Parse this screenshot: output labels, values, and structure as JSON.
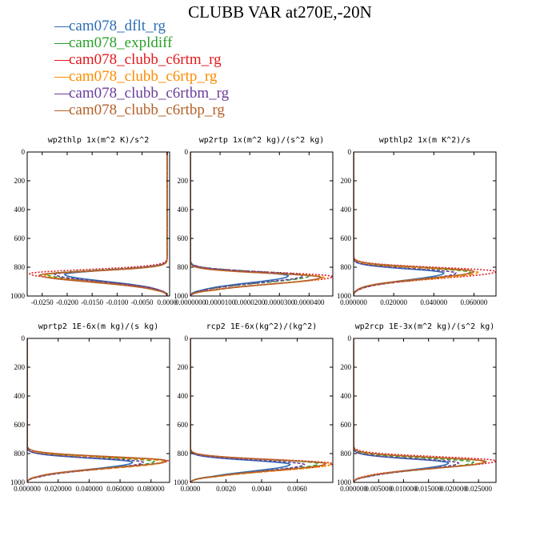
{
  "title": "CLUBB VAR at270E,-20N",
  "colors": {
    "cam078_dflt_rg": "#2c6db5",
    "cam078_expldiff": "#2ca02c",
    "cam078_clubb_c6rtm_rg": "#e41a1c",
    "cam078_clubb_c6rtp_rg": "#ff8c00",
    "cam078_clubb_c6rtbm_rg": "#6a3d9a",
    "cam078_clubb_c6rtbp_rg": "#b5612a"
  },
  "legend": [
    {
      "name": "cam078_dflt_rg",
      "color": "#2c6db5"
    },
    {
      "name": "cam078_expldiff",
      "color": "#2ca02c"
    },
    {
      "name": "cam078_clubb_c6rtm_rg",
      "color": "#e41a1c"
    },
    {
      "name": "cam078_clubb_c6rtp_rg",
      "color": "#ff8c00"
    },
    {
      "name": "cam078_clubb_c6rtbm_rg",
      "color": "#6a3d9a"
    },
    {
      "name": "cam078_clubb_c6rtbp_rg",
      "color": "#b5612a"
    }
  ],
  "chart_data": [
    {
      "type": "line",
      "title": "wp2thlp  1x(m^2 K)/s^2",
      "xlim": [
        -0.028,
        0.0005
      ],
      "ylim": [
        1000,
        0
      ],
      "xticks": [
        "-0.0250",
        "-0.0200",
        "-0.0150",
        "-0.0100",
        "-0.0050",
        "0.0000"
      ],
      "xtick_values": [
        -0.025,
        -0.02,
        -0.015,
        -0.01,
        -0.005,
        0.0
      ],
      "yticks": [
        "0",
        "200",
        "400",
        "600",
        "800",
        "1000"
      ],
      "yticks_values": [
        0,
        200,
        400,
        600,
        800,
        1000
      ],
      "series": [
        {
          "name": "cam078_dflt_rg",
          "peak_level": 850,
          "peak_value": -0.0205,
          "base_value": 0.0
        },
        {
          "name": "cam078_expldiff",
          "peak_level": 850,
          "peak_value": -0.024,
          "base_value": 0.0
        },
        {
          "name": "cam078_clubb_c6rtm_rg",
          "peak_level": 845,
          "peak_value": -0.0275,
          "base_value": 0.0
        },
        {
          "name": "cam078_clubb_c6rtp_rg",
          "peak_level": 855,
          "peak_value": -0.0245,
          "base_value": 0.0
        },
        {
          "name": "cam078_clubb_c6rtbm_rg",
          "peak_level": 850,
          "peak_value": -0.0225,
          "base_value": 0.0
        },
        {
          "name": "cam078_clubb_c6rtbp_rg",
          "peak_level": 855,
          "peak_value": -0.0255,
          "base_value": 0.0
        }
      ]
    },
    {
      "type": "line",
      "title": "wp2rtp  1x(m^2 kg)/(s^2 kg)",
      "xlim": [
        0.0,
        4.8e-05
      ],
      "ylim": [
        1000,
        0
      ],
      "xticks": [
        "0.0000000",
        "0.0000100",
        "0.0000200",
        "0.0000300",
        "0.0000400"
      ],
      "xtick_values": [
        0.0,
        1e-05,
        2e-05,
        3e-05,
        4e-05
      ],
      "yticks": [
        "0",
        "200",
        "400",
        "600",
        "800",
        "1000"
      ],
      "yticks_values": [
        0,
        200,
        400,
        600,
        800,
        1000
      ],
      "series": [
        {
          "name": "cam078_dflt_rg",
          "peak_level": 860,
          "peak_value": 3.3e-05,
          "base_value": 0.0
        },
        {
          "name": "cam078_expldiff",
          "peak_level": 860,
          "peak_value": 4e-05,
          "base_value": 0.0
        },
        {
          "name": "cam078_clubb_c6rtm_rg",
          "peak_level": 865,
          "peak_value": 4.8e-05,
          "base_value": 0.0
        },
        {
          "name": "cam078_clubb_c6rtp_rg",
          "peak_level": 870,
          "peak_value": 4.5e-05,
          "base_value": 0.0
        },
        {
          "name": "cam078_clubb_c6rtbm_rg",
          "peak_level": 860,
          "peak_value": 3.8e-05,
          "base_value": 0.0
        },
        {
          "name": "cam078_clubb_c6rtbp_rg",
          "peak_level": 870,
          "peak_value": 4.4e-05,
          "base_value": 0.0
        }
      ]
    },
    {
      "type": "line",
      "title": "wpthlp2  1x(m K^2)/s",
      "xlim": [
        0.0,
        0.071
      ],
      "ylim": [
        1000,
        0
      ],
      "xticks": [
        "0.000000",
        "0.020000",
        "0.040000",
        "0.060000"
      ],
      "xtick_values": [
        0.0,
        0.02,
        0.04,
        0.06
      ],
      "yticks": [
        "0",
        "200",
        "400",
        "600",
        "800",
        "1000"
      ],
      "yticks_values": [
        0,
        200,
        400,
        600,
        800,
        1000
      ],
      "series": [
        {
          "name": "cam078_dflt_rg",
          "peak_level": 840,
          "peak_value": 0.045,
          "base_value": 0.0
        },
        {
          "name": "cam078_expldiff",
          "peak_level": 835,
          "peak_value": 0.058,
          "base_value": 0.0
        },
        {
          "name": "cam078_clubb_c6rtm_rg",
          "peak_level": 830,
          "peak_value": 0.071,
          "base_value": 0.0
        },
        {
          "name": "cam078_clubb_c6rtp_rg",
          "peak_level": 835,
          "peak_value": 0.062,
          "base_value": 0.0
        },
        {
          "name": "cam078_clubb_c6rtbm_rg",
          "peak_level": 840,
          "peak_value": 0.051,
          "base_value": 0.0
        },
        {
          "name": "cam078_clubb_c6rtbp_rg",
          "peak_level": 830,
          "peak_value": 0.06,
          "base_value": 0.0
        }
      ]
    },
    {
      "type": "line",
      "title": "wprtp2  1E-6x(m kg)/(s kg)",
      "xlim": [
        0.0,
        0.092
      ],
      "ylim": [
        1000,
        0
      ],
      "xticks": [
        "0.000000",
        "0.020000",
        "0.040000",
        "0.060000",
        "0.080000"
      ],
      "xtick_values": [
        0.0,
        0.02,
        0.04,
        0.06,
        0.08
      ],
      "yticks": [
        "0",
        "200",
        "400",
        "600",
        "800",
        "1000"
      ],
      "yticks_values": [
        0,
        200,
        400,
        600,
        800,
        1000
      ],
      "series": [
        {
          "name": "cam078_dflt_rg",
          "peak_level": 860,
          "peak_value": 0.068,
          "base_value": 0.0
        },
        {
          "name": "cam078_expldiff",
          "peak_level": 855,
          "peak_value": 0.082,
          "base_value": 0.0
        },
        {
          "name": "cam078_clubb_c6rtm_rg",
          "peak_level": 850,
          "peak_value": 0.091,
          "base_value": 0.0
        },
        {
          "name": "cam078_clubb_c6rtp_rg",
          "peak_level": 855,
          "peak_value": 0.089,
          "base_value": 0.0
        },
        {
          "name": "cam078_clubb_c6rtbm_rg",
          "peak_level": 860,
          "peak_value": 0.075,
          "base_value": 0.0
        },
        {
          "name": "cam078_clubb_c6rtbp_rg",
          "peak_level": 850,
          "peak_value": 0.09,
          "base_value": 0.0
        }
      ]
    },
    {
      "type": "line",
      "title": "rcp2  1E-6x(kg^2)/(kg^2)",
      "xlim": [
        0.0,
        0.008
      ],
      "ylim": [
        1000,
        0
      ],
      "xticks": [
        "0.0000",
        "0.0020",
        "0.0040",
        "0.0060"
      ],
      "xtick_values": [
        0.0,
        0.002,
        0.004,
        0.006
      ],
      "yticks": [
        "0",
        "200",
        "400",
        "600",
        "800",
        "1000"
      ],
      "yticks_values": [
        0,
        200,
        400,
        600,
        800,
        1000
      ],
      "series": [
        {
          "name": "cam078_dflt_rg",
          "peak_level": 875,
          "peak_value": 0.0056,
          "base_value": 0.0
        },
        {
          "name": "cam078_expldiff",
          "peak_level": 870,
          "peak_value": 0.0072,
          "base_value": 0.0
        },
        {
          "name": "cam078_clubb_c6rtm_rg",
          "peak_level": 870,
          "peak_value": 0.008,
          "base_value": 0.0
        },
        {
          "name": "cam078_clubb_c6rtp_rg",
          "peak_level": 872,
          "peak_value": 0.0079,
          "base_value": 0.0
        },
        {
          "name": "cam078_clubb_c6rtbm_rg",
          "peak_level": 875,
          "peak_value": 0.0064,
          "base_value": 0.0
        },
        {
          "name": "cam078_clubb_c6rtbp_rg",
          "peak_level": 870,
          "peak_value": 0.0076,
          "base_value": 0.0
        }
      ]
    },
    {
      "type": "line",
      "title": "wp2rcp  1E-3x(m^2 kg)/(s^2 kg)",
      "xlim": [
        0.0,
        0.0285
      ],
      "ylim": [
        1000,
        0
      ],
      "xticks": [
        "0.000000",
        "0.005000",
        "0.010000",
        "0.015000",
        "0.020000",
        "0.025000"
      ],
      "xtick_values": [
        0.0,
        0.005,
        0.01,
        0.015,
        0.02,
        0.025
      ],
      "yticks": [
        "0",
        "200",
        "400",
        "600",
        "800",
        "1000"
      ],
      "yticks_values": [
        0,
        200,
        400,
        600,
        800,
        1000
      ],
      "series": [
        {
          "name": "cam078_dflt_rg",
          "peak_level": 865,
          "peak_value": 0.019,
          "base_value": 0.0
        },
        {
          "name": "cam078_expldiff",
          "peak_level": 860,
          "peak_value": 0.024,
          "base_value": 0.0
        },
        {
          "name": "cam078_clubb_c6rtm_rg",
          "peak_level": 850,
          "peak_value": 0.0285,
          "base_value": 0.0
        },
        {
          "name": "cam078_clubb_c6rtp_rg",
          "peak_level": 855,
          "peak_value": 0.026,
          "base_value": 0.0
        },
        {
          "name": "cam078_clubb_c6rtbm_rg",
          "peak_level": 865,
          "peak_value": 0.021,
          "base_value": 0.0
        },
        {
          "name": "cam078_clubb_c6rtbp_rg",
          "peak_level": 855,
          "peak_value": 0.0265,
          "base_value": 0.0
        }
      ]
    }
  ]
}
